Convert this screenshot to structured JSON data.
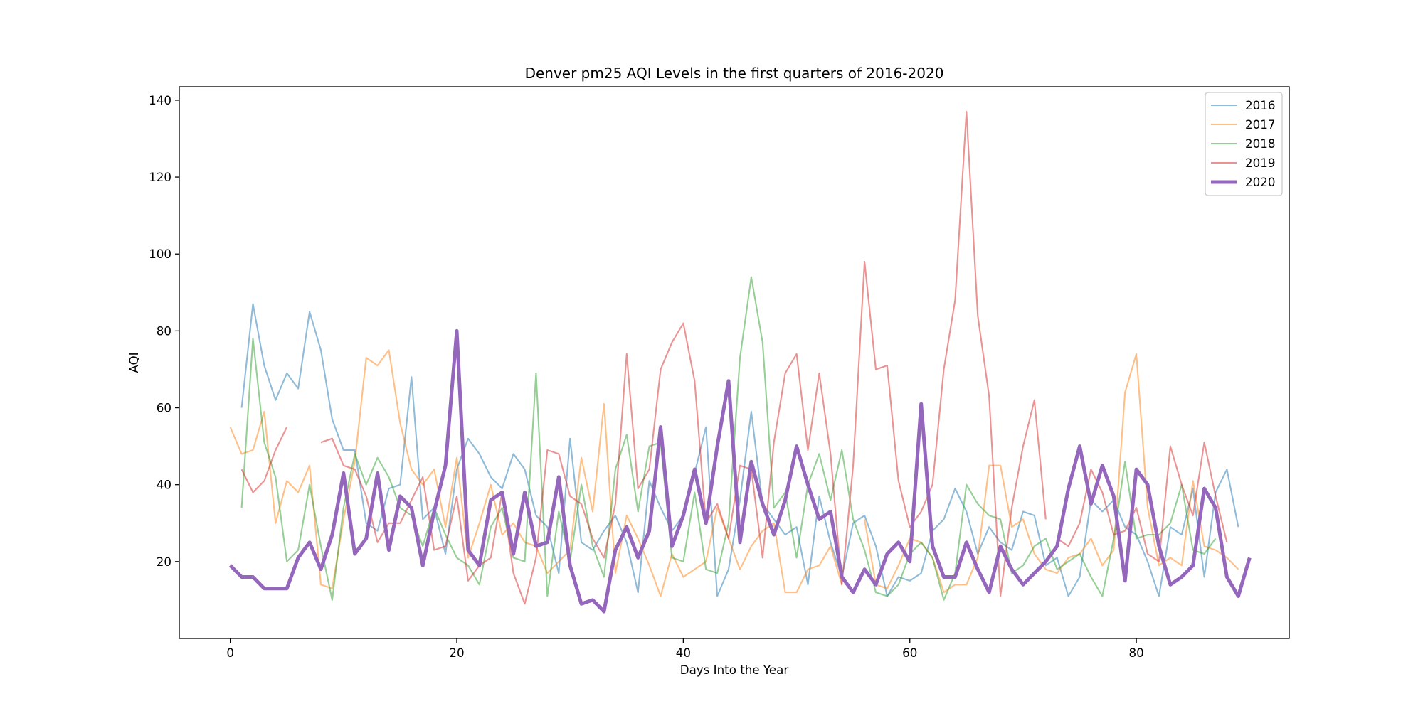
{
  "chart_data": {
    "type": "line",
    "title": "Denver pm25 AQI Levels in the first quarters of 2016-2020",
    "xlabel": "Days Into the Year",
    "ylabel": "AQI",
    "xlim": [
      -4.5,
      93.5
    ],
    "ylim": [
      0,
      143.5
    ],
    "xticks": [
      0,
      20,
      40,
      60,
      80
    ],
    "yticks": [
      20,
      40,
      60,
      80,
      100,
      120,
      140
    ],
    "grid": false,
    "legend_position": "top-right",
    "series": [
      {
        "name": "2016",
        "color": "#1f77b4",
        "alpha": 0.5,
        "emphasis": false,
        "segments": [
          {
            "x0": 1,
            "values": [
              60,
              87,
              71,
              62,
              69,
              65,
              85,
              75,
              57,
              49,
              49,
              30,
              28,
              39,
              40,
              68,
              31,
              34,
              22,
              44,
              52,
              48,
              42,
              39,
              48,
              44,
              32,
              29,
              17,
              52,
              25,
              23,
              28,
              32,
              25,
              12,
              41,
              34,
              28,
              32,
              43,
              55,
              11,
              18,
              36,
              59,
              35,
              31,
              27,
              29,
              14,
              37,
              25,
              16,
              30,
              32,
              24,
              11,
              16,
              15,
              17,
              28,
              31,
              39,
              33,
              22,
              29,
              25,
              23,
              33,
              32,
              19,
              21,
              11,
              16,
              36,
              33,
              36,
              29,
              27,
              20,
              11,
              29,
              27,
              39,
              16,
              38,
              44,
              29
            ]
          }
        ]
      },
      {
        "name": "2017",
        "color": "#ff7f0e",
        "alpha": 0.5,
        "emphasis": false,
        "segments": [
          {
            "x0": 0,
            "values": [
              55,
              48,
              49,
              59,
              30,
              41,
              38,
              45,
              14,
              13,
              31,
              46,
              73,
              71,
              75,
              56,
              44,
              40,
              44,
              29,
              47,
              21,
              30,
              40,
              27,
              30,
              25,
              24,
              17,
              20,
              23,
              47,
              33,
              61,
              17,
              32,
              26,
              19,
              11,
              22,
              16,
              18,
              20,
              34,
              26,
              18,
              24,
              28,
              30,
              12,
              12,
              18,
              19,
              24,
              14
            ]
          },
          {
            "x0": 56,
            "values": [
              31,
              14,
              13,
              19,
              26,
              25,
              21,
              12,
              14,
              14,
              21,
              45,
              45,
              29,
              31,
              22,
              18,
              17,
              21,
              22,
              26,
              19,
              23,
              64,
              74,
              34,
              19,
              21,
              19,
              41,
              24,
              23,
              21,
              18
            ]
          }
        ]
      },
      {
        "name": "2018",
        "color": "#2ca02c",
        "alpha": 0.5,
        "emphasis": false,
        "segments": [
          {
            "x0": 1,
            "values": [
              34,
              78,
              51,
              42,
              20,
              23,
              40,
              24,
              10,
              34,
              48,
              40,
              47,
              42,
              34,
              32,
              24,
              34,
              27,
              21,
              19,
              14,
              29,
              34,
              21,
              20,
              69,
              11,
              33,
              20,
              40,
              24,
              16,
              44,
              53,
              33,
              50,
              51,
              21,
              20,
              38,
              18,
              17,
              30,
              73,
              94,
              77,
              34,
              38,
              21,
              40,
              48,
              36,
              49,
              31,
              23,
              12,
              11,
              14,
              22,
              25,
              21,
              10,
              17,
              40,
              35,
              32,
              31,
              17,
              19,
              24,
              26,
              18,
              20,
              22,
              16,
              11,
              26,
              46,
              26,
              27,
              27,
              30,
              40,
              23,
              22,
              26
            ]
          }
        ]
      },
      {
        "name": "2019",
        "color": "#d62728",
        "alpha": 0.5,
        "emphasis": false,
        "segments": [
          {
            "x0": 1,
            "values": [
              44,
              38,
              41,
              49,
              55
            ]
          },
          {
            "x0": 8,
            "values": [
              51,
              52,
              45,
              44,
              37,
              25,
              30,
              30,
              36,
              42,
              23,
              24,
              37,
              15,
              19,
              21,
              38,
              17,
              9,
              21,
              49,
              48,
              37,
              35,
              26,
              21,
              35,
              74,
              39,
              44,
              70,
              77,
              82,
              67,
              30,
              35,
              26,
              45,
              44,
              21,
              51,
              69,
              74,
              49,
              69,
              48,
              14,
              45,
              98,
              70,
              71,
              41,
              29,
              33,
              40,
              70,
              88,
              137,
              84,
              63,
              11,
              34,
              50,
              62,
              31
            ]
          },
          {
            "x0": 73,
            "values": [
              26,
              24,
              30,
              44,
              38,
              27,
              28,
              34,
              22,
              20,
              50,
              40,
              32,
              51,
              37,
              25
            ]
          }
        ]
      },
      {
        "name": "2020",
        "color": "#9467bd",
        "alpha": 1.0,
        "emphasis": true,
        "segments": [
          {
            "x0": 0,
            "values": [
              19,
              16,
              16,
              13,
              13,
              13,
              21,
              25,
              18,
              27,
              43,
              22,
              26,
              43,
              23,
              37,
              34,
              19,
              33,
              45,
              80,
              23,
              19,
              36,
              38,
              22,
              38,
              24,
              25,
              42,
              19,
              9,
              10,
              7,
              23,
              29,
              21,
              28,
              55,
              24,
              32,
              44,
              30,
              50,
              67,
              25,
              46,
              35,
              27,
              36,
              50,
              40,
              31,
              33,
              16,
              12,
              18,
              14,
              22,
              25,
              20,
              61,
              24,
              16,
              16,
              25,
              18,
              12,
              24,
              18,
              14,
              17,
              20,
              24,
              39,
              50,
              35,
              45,
              37,
              15,
              44,
              40,
              24,
              14,
              16,
              19,
              39,
              34,
              16,
              11,
              21
            ]
          }
        ]
      }
    ]
  }
}
